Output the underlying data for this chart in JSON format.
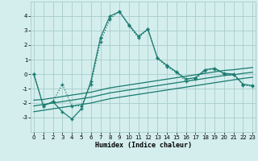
{
  "xlabel": "Humidex (Indice chaleur)",
  "x_data": [
    0,
    1,
    2,
    3,
    4,
    5,
    6,
    7,
    8,
    9,
    10,
    11,
    12,
    13,
    14,
    15,
    16,
    17,
    18,
    19,
    20,
    21,
    22,
    23
  ],
  "line1_solid": [
    0,
    -2.2,
    -1.9,
    -2.6,
    -3.1,
    -2.4,
    -0.5,
    2.5,
    4.0,
    4.3,
    3.4,
    2.6,
    3.1,
    1.1,
    0.6,
    0.15,
    -0.35,
    -0.25,
    0.3,
    0.4,
    0.05,
    0.0,
    -0.7,
    -0.8
  ],
  "line1_dot": [
    0,
    -2.2,
    -1.9,
    -0.7,
    -2.2,
    -2.2,
    -0.7,
    2.2,
    3.8,
    4.35,
    3.35,
    2.5,
    3.1,
    1.1,
    0.5,
    0.1,
    -0.5,
    -0.35,
    0.25,
    0.35,
    0.0,
    -0.05,
    -0.75,
    -0.85
  ],
  "line2": [
    -1.8,
    -1.75,
    -1.65,
    -1.55,
    -1.45,
    -1.35,
    -1.25,
    -1.1,
    -0.95,
    -0.85,
    -0.75,
    -0.65,
    -0.55,
    -0.45,
    -0.35,
    -0.25,
    -0.15,
    -0.05,
    0.05,
    0.15,
    0.25,
    0.3,
    0.38,
    0.45
  ],
  "line3": [
    -2.2,
    -2.1,
    -2.0,
    -1.9,
    -1.8,
    -1.7,
    -1.6,
    -1.45,
    -1.3,
    -1.2,
    -1.1,
    -1.0,
    -0.9,
    -0.8,
    -0.7,
    -0.6,
    -0.5,
    -0.4,
    -0.3,
    -0.2,
    -0.1,
    -0.05,
    0.05,
    0.12
  ],
  "line4": [
    -2.6,
    -2.5,
    -2.4,
    -2.3,
    -2.2,
    -2.1,
    -2.0,
    -1.85,
    -1.7,
    -1.6,
    -1.5,
    -1.4,
    -1.3,
    -1.2,
    -1.1,
    -1.0,
    -0.9,
    -0.8,
    -0.7,
    -0.6,
    -0.5,
    -0.4,
    -0.3,
    -0.22
  ],
  "line_color": "#1a7a6e",
  "bg_color": "#d4eeee",
  "grid_color": "#a8cccc",
  "ylim": [
    -4,
    5
  ],
  "yticks": [
    -3,
    -2,
    -1,
    0,
    1,
    2,
    3,
    4
  ],
  "xticks": [
    0,
    1,
    2,
    3,
    4,
    5,
    6,
    7,
    8,
    9,
    10,
    11,
    12,
    13,
    14,
    15,
    16,
    17,
    18,
    19,
    20,
    21,
    22,
    23
  ],
  "marker": "+",
  "marker_size": 3,
  "linewidth": 0.9
}
